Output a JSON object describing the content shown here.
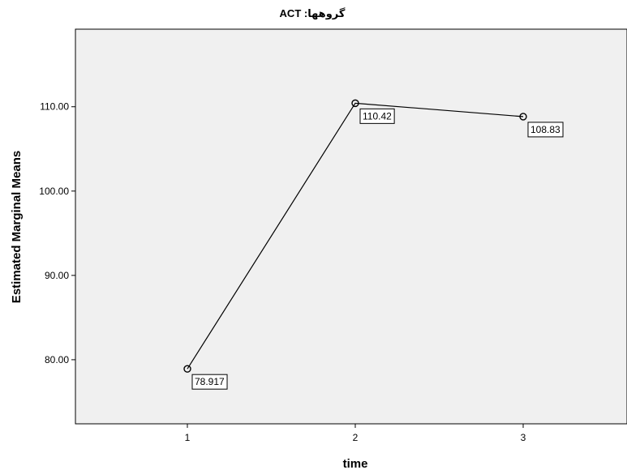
{
  "chart_data": {
    "type": "line",
    "title": "ACT :گروهها",
    "xlabel": "time",
    "ylabel": "Estimated Marginal Means",
    "categories": [
      "1",
      "2",
      "3"
    ],
    "series": [
      {
        "values": [
          78.917,
          110.42,
          108.83
        ]
      }
    ],
    "data_labels": [
      "78.917",
      "110.42",
      "108.83"
    ],
    "ylim": [
      72.4,
      119.2
    ],
    "yticks": [
      80,
      90,
      100,
      110
    ],
    "ytick_labels": [
      "80.00",
      "90.00",
      "100.00",
      "110.00"
    ],
    "grid": false,
    "legend": "none",
    "colors": {
      "plot_background": "#f0f0f0",
      "line": "#000000",
      "frame": "#000000"
    }
  }
}
